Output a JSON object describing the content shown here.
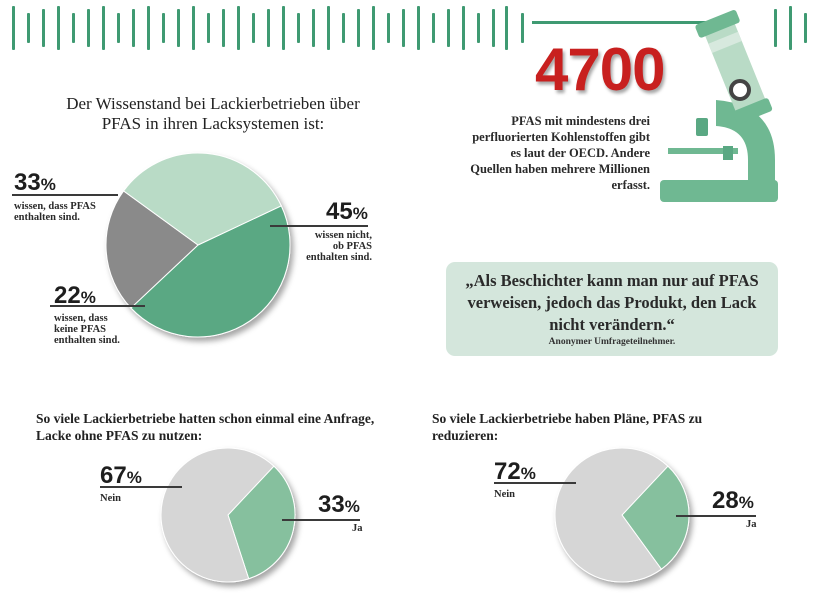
{
  "colors": {
    "accent_green": "#3f9a72",
    "dark_green": "#5aa883",
    "light_green": "#b9dbc6",
    "gray": "#8a8a8a",
    "light_gray": "#d6d6d6",
    "mid_green": "#86c09e",
    "red": "#c8201f",
    "quote_bg": "#d4e6dc"
  },
  "stat": {
    "number": "4700",
    "description": "PFAS mit mindestens drei perfluorierten Kohlenstoffen gibt es laut der OECD. Andere Quellen haben mehrere Millionen erfasst."
  },
  "quote": {
    "text": "„Als Beschichter kann man nur auf PFAS verweisen, jedoch das Produkt, den Lack nicht verändern.“",
    "author": "Anonymer Umfrageteilnehmer."
  },
  "decor_icon": "microscope-icon",
  "chart_data": [
    {
      "type": "pie",
      "title": "Der Wissenstand bei Lackierbetrieben über PFAS in ihren Lacksystemen ist:",
      "slices": [
        {
          "value": 45,
          "pct": "45",
          "label": "wissen nicht, ob PFAS enthalten sind.",
          "color": "#5aa883"
        },
        {
          "value": 22,
          "pct": "22",
          "label": "wissen, dass keine PFAS enthalten sind.",
          "color": "#8a8a8a"
        },
        {
          "value": 33,
          "pct": "33",
          "label": "wissen, dass PFAS enthalten sind.",
          "color": "#b9dbc6"
        }
      ]
    },
    {
      "type": "pie",
      "title": "So viele Lackierbetriebe hatten schon einmal eine Anfrage, Lacke ohne PFAS zu nutzen:",
      "slices": [
        {
          "value": 33,
          "pct": "33",
          "label": "Ja",
          "color": "#86c09e"
        },
        {
          "value": 67,
          "pct": "67",
          "label": "Nein",
          "color": "#d6d6d6"
        }
      ]
    },
    {
      "type": "pie",
      "title": "So viele Lackierbetriebe haben Pläne, PFAS zu reduzieren:",
      "slices": [
        {
          "value": 28,
          "pct": "28",
          "label": "Ja",
          "color": "#86c09e"
        },
        {
          "value": 72,
          "pct": "72",
          "label": "Nein",
          "color": "#d6d6d6"
        }
      ]
    }
  ]
}
